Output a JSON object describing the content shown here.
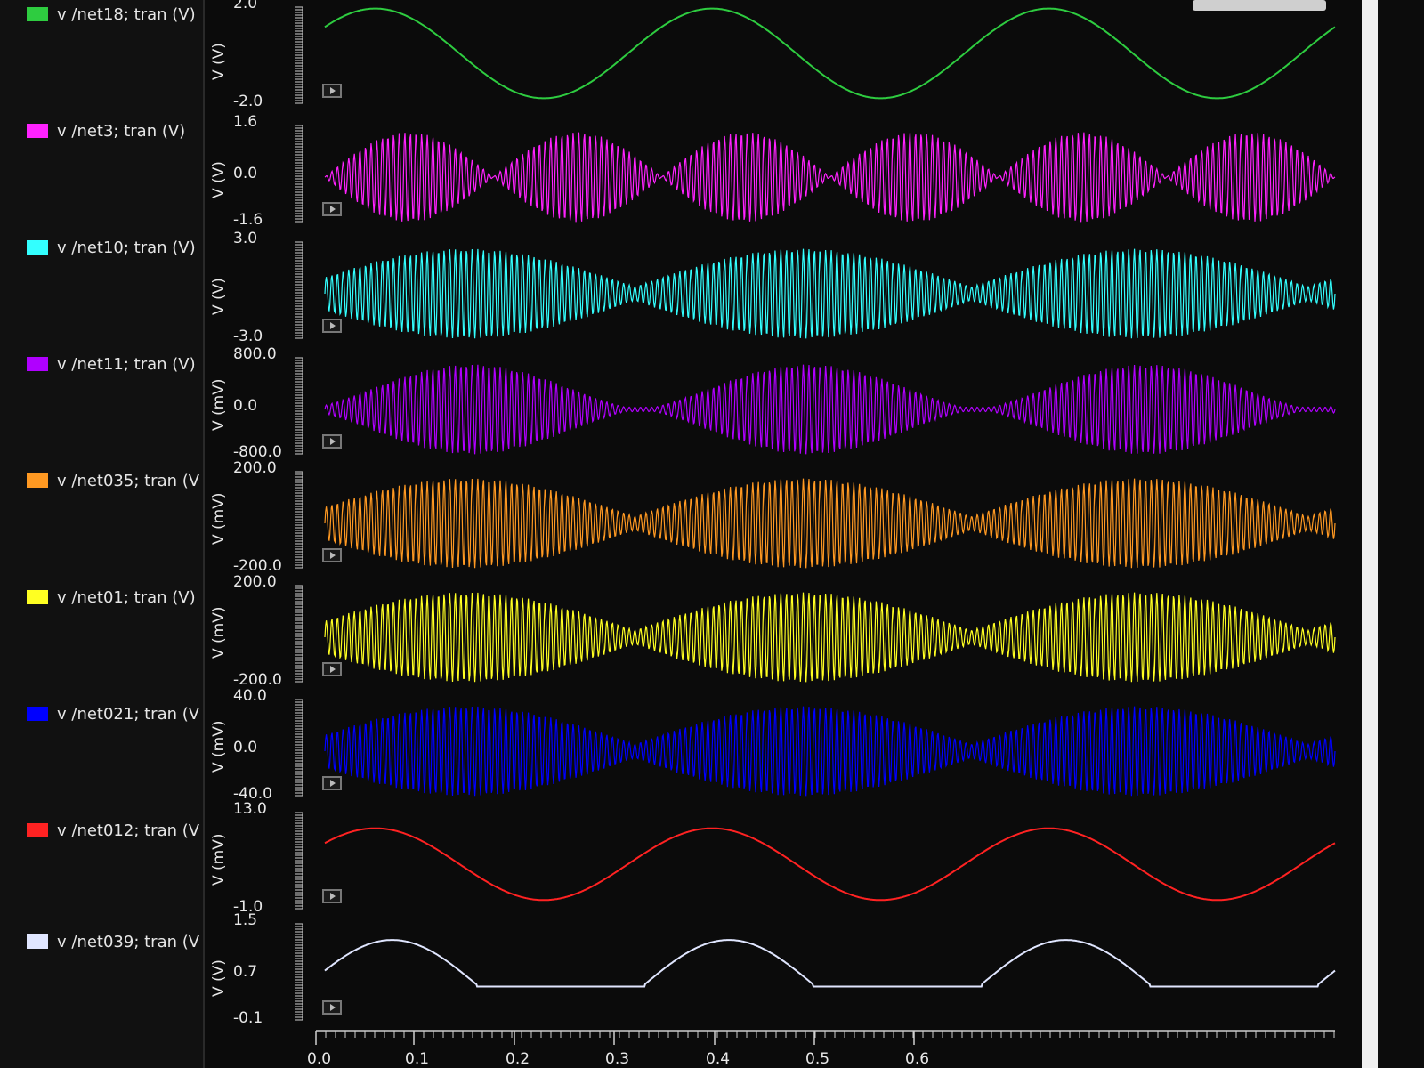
{
  "legend": [
    {
      "label": "v /net18; tran (V)",
      "color": "#2ecc40"
    },
    {
      "label": "v /net3; tran (V)",
      "color": "#ff22ff"
    },
    {
      "label": "v /net10; tran (V)",
      "color": "#33ffff"
    },
    {
      "label": "v /net11; tran (V)",
      "color": "#b000ff"
    },
    {
      "label": "v /net035; tran (V",
      "color": "#ff9922"
    },
    {
      "label": "v /net01; tran (V)",
      "color": "#ffff22"
    },
    {
      "label": "v /net021; tran (V",
      "color": "#0000ff"
    },
    {
      "label": "v /net012; tran (V",
      "color": "#ff2222"
    },
    {
      "label": "v /net039; tran (V",
      "color": "#e0e6ff"
    }
  ],
  "traces": [
    {
      "ylabel": "V (V)",
      "ticks": [
        "2.0",
        "-2.0"
      ],
      "type": "sine"
    },
    {
      "ylabel": "V (V)",
      "ticks": [
        "1.6",
        "0.0",
        "-1.6"
      ],
      "type": "am"
    },
    {
      "ylabel": "V (V)",
      "ticks": [
        "3.0",
        "-3.0"
      ],
      "type": "am2"
    },
    {
      "ylabel": "V (mV)",
      "ticks": [
        "800.0",
        "0.0",
        "-800.0"
      ],
      "type": "am3"
    },
    {
      "ylabel": "V (mV)",
      "ticks": [
        "200.0",
        "-200.0"
      ],
      "type": "am2"
    },
    {
      "ylabel": "V (mV)",
      "ticks": [
        "200.0",
        "-200.0"
      ],
      "type": "am2"
    },
    {
      "ylabel": "V (mV)",
      "ticks": [
        "40.0",
        "0.0",
        "-40.0"
      ],
      "type": "am2"
    },
    {
      "ylabel": "V (mV)",
      "ticks": [
        "13.0",
        "-1.0"
      ],
      "type": "sine2"
    },
    {
      "ylabel": "V (V)",
      "ticks": [
        "1.5",
        "0.7",
        "-0.1"
      ],
      "type": "rect"
    }
  ],
  "xaxis": {
    "ticks": [
      "0.0",
      "0.1",
      "0.2",
      "0.3",
      "0.4",
      "0.5",
      "0.6"
    ]
  }
}
